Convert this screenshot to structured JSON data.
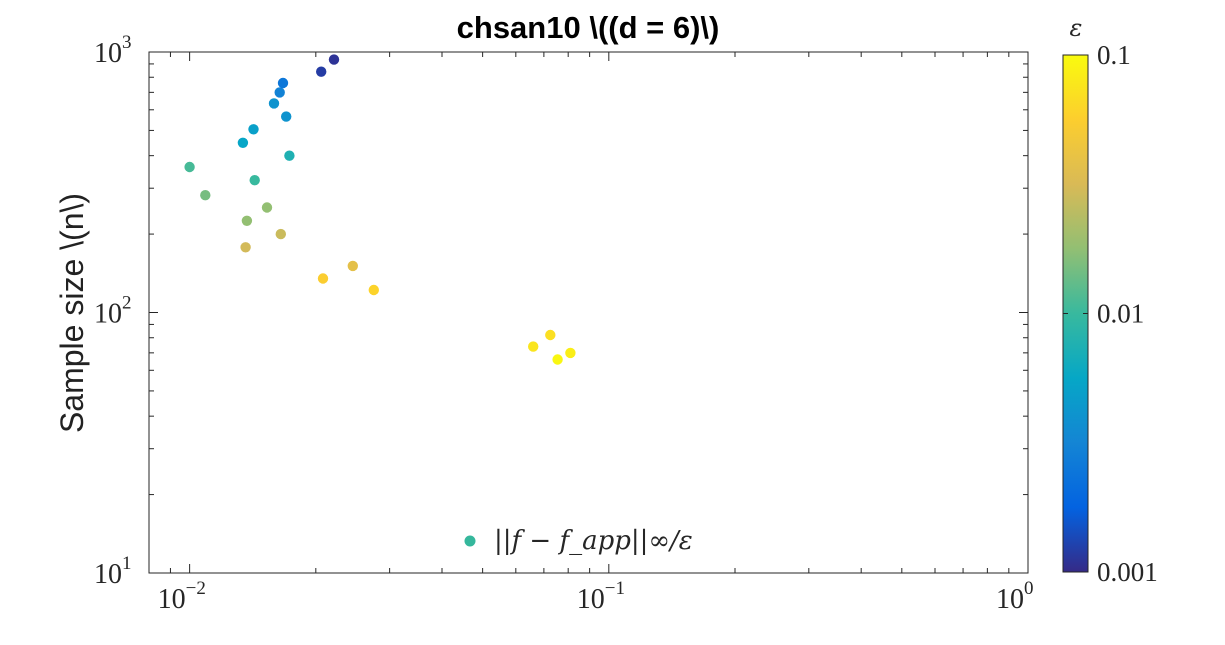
{
  "chart_data": {
    "type": "scatter",
    "title": "chsan10 \\((d = 6)\\)",
    "ylabel": "Sample size \\(n\\)",
    "xlabel": "",
    "xscale": "log",
    "yscale": "log",
    "xlim": [
      0.008,
      1
    ],
    "ylim": [
      10,
      1000
    ],
    "x_ticks": [
      {
        "value": 0.01,
        "base": "10",
        "exp": "−2"
      },
      {
        "value": 0.1,
        "base": "10",
        "exp": "−1"
      },
      {
        "value": 1,
        "base": "10",
        "exp": "0"
      }
    ],
    "y_ticks": [
      {
        "value": 10,
        "base": "10",
        "exp": "1"
      },
      {
        "value": 100,
        "base": "10",
        "exp": "2"
      },
      {
        "value": 1000,
        "base": "10",
        "exp": "3"
      }
    ],
    "grid": false,
    "legend": {
      "position": "bottom-center",
      "label": "||f − f_app||∞/ε",
      "marker_color": "#35b79c"
    },
    "colorbar": {
      "label": "ε",
      "scale": "log",
      "range": [
        0.001,
        0.1
      ],
      "ticks": [
        {
          "value": 0.1,
          "label": "0.1"
        },
        {
          "value": 0.01,
          "label": "0.01"
        },
        {
          "value": 0.001,
          "label": "0.001"
        }
      ],
      "colormap": "parula",
      "colors": [
        "#352a87",
        "#0363e1",
        "#1485d4",
        "#06a7c6",
        "#38b99e",
        "#92bf73",
        "#d9ba56",
        "#fcce2e",
        "#f9fb0e"
      ]
    },
    "series": [
      {
        "points": [
          {
            "x": 0.01,
            "y": 362,
            "eps": 0.011
          },
          {
            "x": 0.0109,
            "y": 282,
            "eps": 0.015
          },
          {
            "x": 0.0134,
            "y": 448,
            "eps": 0.0055
          },
          {
            "x": 0.0137,
            "y": 225,
            "eps": 0.018
          },
          {
            "x": 0.0136,
            "y": 178,
            "eps": 0.03
          },
          {
            "x": 0.0142,
            "y": 505,
            "eps": 0.005
          },
          {
            "x": 0.0143,
            "y": 322,
            "eps": 0.01
          },
          {
            "x": 0.0153,
            "y": 253,
            "eps": 0.018
          },
          {
            "x": 0.0159,
            "y": 635,
            "eps": 0.004
          },
          {
            "x": 0.0164,
            "y": 700,
            "eps": 0.003
          },
          {
            "x": 0.0165,
            "y": 200,
            "eps": 0.028
          },
          {
            "x": 0.0167,
            "y": 760,
            "eps": 0.0025
          },
          {
            "x": 0.017,
            "y": 565,
            "eps": 0.004
          },
          {
            "x": 0.0173,
            "y": 400,
            "eps": 0.0075
          },
          {
            "x": 0.0206,
            "y": 840,
            "eps": 0.0012
          },
          {
            "x": 0.0208,
            "y": 135,
            "eps": 0.055
          },
          {
            "x": 0.0221,
            "y": 935,
            "eps": 0.0011
          },
          {
            "x": 0.0245,
            "y": 151,
            "eps": 0.038
          },
          {
            "x": 0.0275,
            "y": 122,
            "eps": 0.06
          },
          {
            "x": 0.066,
            "y": 74,
            "eps": 0.075
          },
          {
            "x": 0.0725,
            "y": 82,
            "eps": 0.07
          },
          {
            "x": 0.0755,
            "y": 66,
            "eps": 0.095
          },
          {
            "x": 0.081,
            "y": 70,
            "eps": 0.085
          }
        ]
      }
    ]
  }
}
